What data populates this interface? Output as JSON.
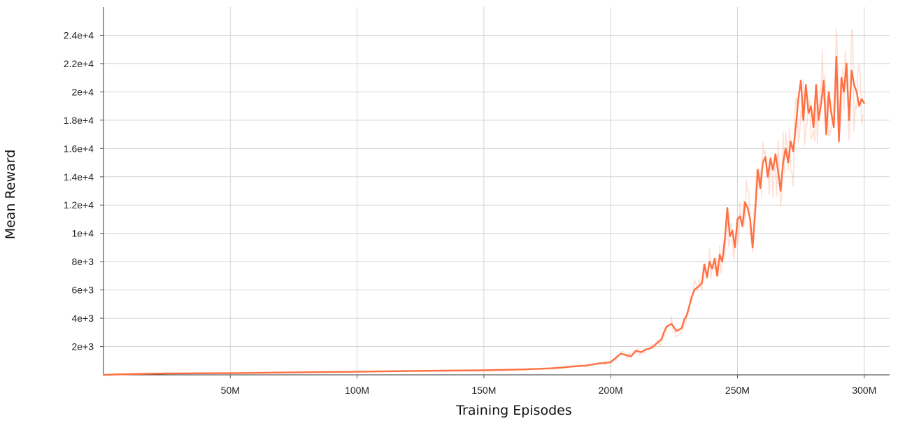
{
  "chart_data": {
    "type": "line",
    "xlabel": "Training Episodes",
    "ylabel": "Mean Reward",
    "xlim": [
      0,
      310000000
    ],
    "ylim": [
      0,
      26000
    ],
    "grid": true,
    "x_ticks": [
      {
        "value": 50000000,
        "label": "50M"
      },
      {
        "value": 100000000,
        "label": "100M"
      },
      {
        "value": 150000000,
        "label": "150M"
      },
      {
        "value": 200000000,
        "label": "200M"
      },
      {
        "value": 250000000,
        "label": "250M"
      },
      {
        "value": 300000000,
        "label": "300M"
      }
    ],
    "y_ticks": [
      {
        "value": 2000,
        "label": "2e+3"
      },
      {
        "value": 4000,
        "label": "4e+3"
      },
      {
        "value": 6000,
        "label": "6e+3"
      },
      {
        "value": 8000,
        "label": "8e+3"
      },
      {
        "value": 10000,
        "label": "1e+4"
      },
      {
        "value": 12000,
        "label": "1.2e+4"
      },
      {
        "value": 14000,
        "label": "1.4e+4"
      },
      {
        "value": 16000,
        "label": "1.6e+4"
      },
      {
        "value": 18000,
        "label": "1.8e+4"
      },
      {
        "value": 20000,
        "label": "2e+4"
      },
      {
        "value": 22000,
        "label": "2.2e+4"
      },
      {
        "value": 24000,
        "label": "2.4e+4"
      }
    ],
    "series": [
      {
        "style": "smoothed",
        "color": "#ff7043",
        "x": [
          0,
          10000000,
          25000000,
          50000000,
          75000000,
          100000000,
          125000000,
          150000000,
          165000000,
          175000000,
          180000000,
          185000000,
          190000000,
          195000000,
          198000000,
          200000000,
          202000000,
          204000000,
          206000000,
          208000000,
          210000000,
          212000000,
          214000000,
          216000000,
          218000000,
          220000000,
          221000000,
          222000000,
          223000000,
          224000000,
          226000000,
          228000000,
          229000000,
          230000000,
          232000000,
          233000000,
          235000000,
          236000000,
          237000000,
          238000000,
          239000000,
          240000000,
          241000000,
          242000000,
          243000000,
          244000000,
          245000000,
          246000000,
          247000000,
          248000000,
          249000000,
          250000000,
          251000000,
          252000000,
          253000000,
          254000000,
          255000000,
          256000000,
          257000000,
          258000000,
          259000000,
          260000000,
          261000000,
          262000000,
          263000000,
          264000000,
          265000000,
          266000000,
          267000000,
          268000000,
          269000000,
          270000000,
          271000000,
          272000000,
          273000000,
          274000000,
          275000000,
          276000000,
          277000000,
          278000000,
          279000000,
          280000000,
          281000000,
          282000000,
          283000000,
          284000000,
          285000000,
          286000000,
          287000000,
          288000000,
          289000000,
          290000000,
          291000000,
          292000000,
          293000000,
          294000000,
          295000000,
          296000000,
          297000000,
          298000000,
          299000000,
          300000000
        ],
        "values": [
          0,
          50,
          100,
          120,
          180,
          220,
          280,
          320,
          380,
          450,
          500,
          600,
          650,
          800,
          850,
          900,
          1200,
          1500,
          1400,
          1300,
          1700,
          1600,
          1800,
          1900,
          2200,
          2500,
          3000,
          3400,
          3500,
          3600,
          3100,
          3300,
          3900,
          4200,
          5500,
          6000,
          6300,
          6500,
          7800,
          6900,
          8000,
          7500,
          8200,
          7000,
          8500,
          8000,
          9500,
          11800,
          9800,
          10200,
          9000,
          11000,
          11200,
          10500,
          12200,
          11800,
          11000,
          9000,
          11500,
          14500,
          13200,
          15000,
          15400,
          14000,
          15300,
          14500,
          15600,
          14400,
          13000,
          15000,
          16000,
          15000,
          16500,
          15800,
          17500,
          19500,
          20800,
          18000,
          20500,
          18500,
          19000,
          17500,
          20500,
          18000,
          19200,
          20800,
          17000,
          20000,
          18500,
          17500,
          22500,
          16500,
          21000,
          20000,
          22000,
          18000,
          21500,
          20500,
          20000,
          19000,
          19500,
          19200
        ],
        "x_offsets": [],
        "y_offsets": []
      }
    ]
  }
}
